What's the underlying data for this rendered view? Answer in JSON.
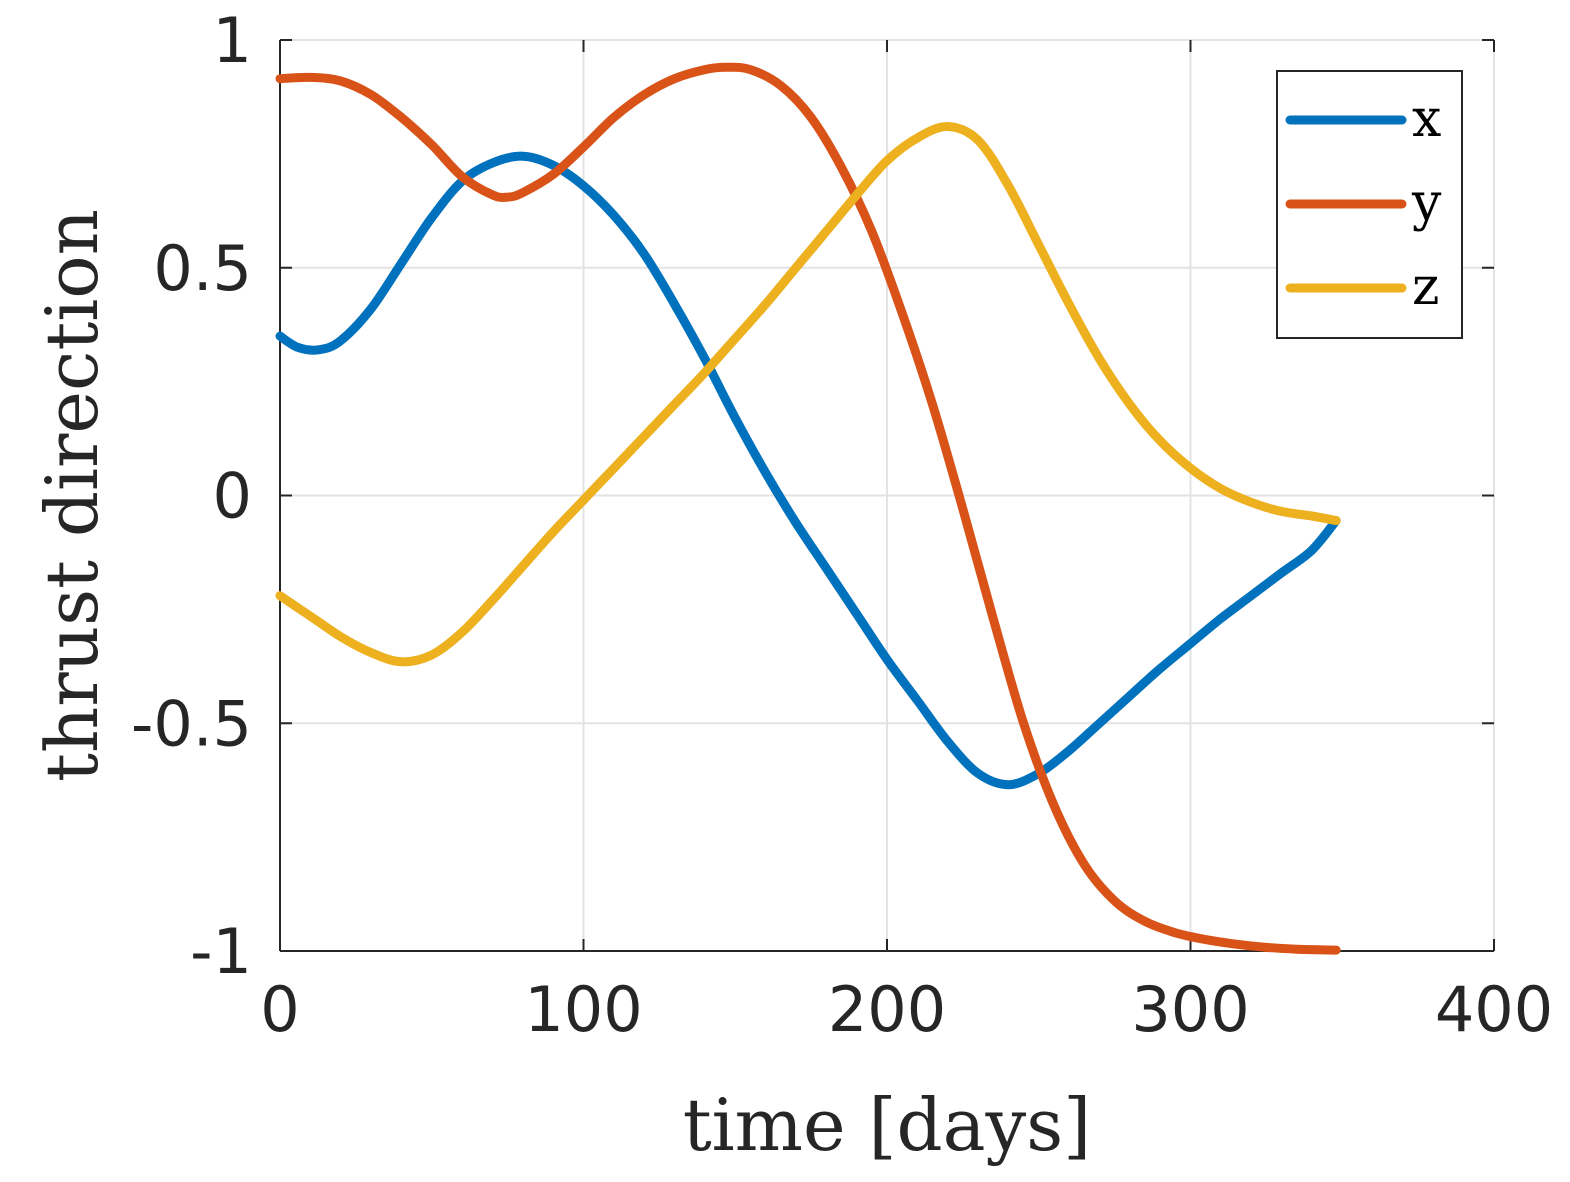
{
  "chart_data": {
    "type": "line",
    "title": "",
    "xlabel": "time [days]",
    "ylabel": "thrust direction",
    "xlim": [
      0,
      400
    ],
    "ylim": [
      -1,
      1
    ],
    "xticks": [
      0,
      100,
      200,
      300,
      400
    ],
    "yticks": [
      -1,
      -0.5,
      0,
      0.5,
      1
    ],
    "xtick_labels": [
      "0",
      "100",
      "200",
      "300",
      "400"
    ],
    "ytick_labels": [
      "-1",
      "-0.5",
      "0",
      "0.5",
      "1"
    ],
    "grid": true,
    "legend_position": "top-right",
    "series": [
      {
        "name": "x",
        "color": "#0072BD",
        "x": [
          0,
          6,
          13,
          20,
          30,
          40,
          50,
          60,
          70,
          80,
          90,
          100,
          110,
          120,
          130,
          140,
          150,
          160,
          170,
          180,
          190,
          200,
          210,
          220,
          230,
          240,
          250,
          260,
          270,
          280,
          290,
          300,
          310,
          320,
          330,
          340,
          348
        ],
        "values": [
          0.35,
          0.325,
          0.32,
          0.34,
          0.41,
          0.51,
          0.61,
          0.69,
          0.73,
          0.745,
          0.725,
          0.68,
          0.615,
          0.53,
          0.42,
          0.3,
          0.17,
          0.05,
          -0.06,
          -0.16,
          -0.26,
          -0.36,
          -0.45,
          -0.54,
          -0.61,
          -0.635,
          -0.61,
          -0.56,
          -0.5,
          -0.44,
          -0.38,
          -0.325,
          -0.27,
          -0.22,
          -0.17,
          -0.12,
          -0.055
        ]
      },
      {
        "name": "y",
        "color": "#D95319",
        "x": [
          0,
          10,
          20,
          30,
          40,
          50,
          60,
          70,
          75,
          80,
          90,
          100,
          110,
          120,
          130,
          140,
          147,
          155,
          165,
          175,
          185,
          195,
          205,
          215,
          225,
          235,
          245,
          255,
          265,
          275,
          285,
          295,
          305,
          315,
          325,
          335,
          348
        ],
        "values": [
          0.915,
          0.918,
          0.91,
          0.88,
          0.83,
          0.77,
          0.7,
          0.66,
          0.655,
          0.665,
          0.705,
          0.765,
          0.83,
          0.88,
          0.915,
          0.935,
          0.94,
          0.935,
          0.9,
          0.83,
          0.72,
          0.58,
          0.4,
          0.2,
          -0.03,
          -0.27,
          -0.5,
          -0.68,
          -0.81,
          -0.89,
          -0.935,
          -0.96,
          -0.975,
          -0.985,
          -0.992,
          -0.996,
          -0.998
        ]
      },
      {
        "name": "z",
        "color": "#EDB120",
        "x": [
          0,
          10,
          20,
          30,
          40,
          50,
          60,
          70,
          80,
          90,
          100,
          110,
          120,
          130,
          140,
          150,
          160,
          170,
          180,
          190,
          200,
          210,
          220,
          230,
          240,
          250,
          260,
          270,
          280,
          290,
          300,
          310,
          320,
          330,
          340,
          348
        ],
        "values": [
          -0.22,
          -0.265,
          -0.31,
          -0.345,
          -0.365,
          -0.35,
          -0.3,
          -0.23,
          -0.155,
          -0.08,
          -0.01,
          0.06,
          0.13,
          0.2,
          0.27,
          0.345,
          0.42,
          0.5,
          0.58,
          0.66,
          0.735,
          0.785,
          0.81,
          0.78,
          0.68,
          0.55,
          0.42,
          0.3,
          0.2,
          0.12,
          0.06,
          0.015,
          -0.015,
          -0.035,
          -0.045,
          -0.055
        ]
      }
    ]
  }
}
